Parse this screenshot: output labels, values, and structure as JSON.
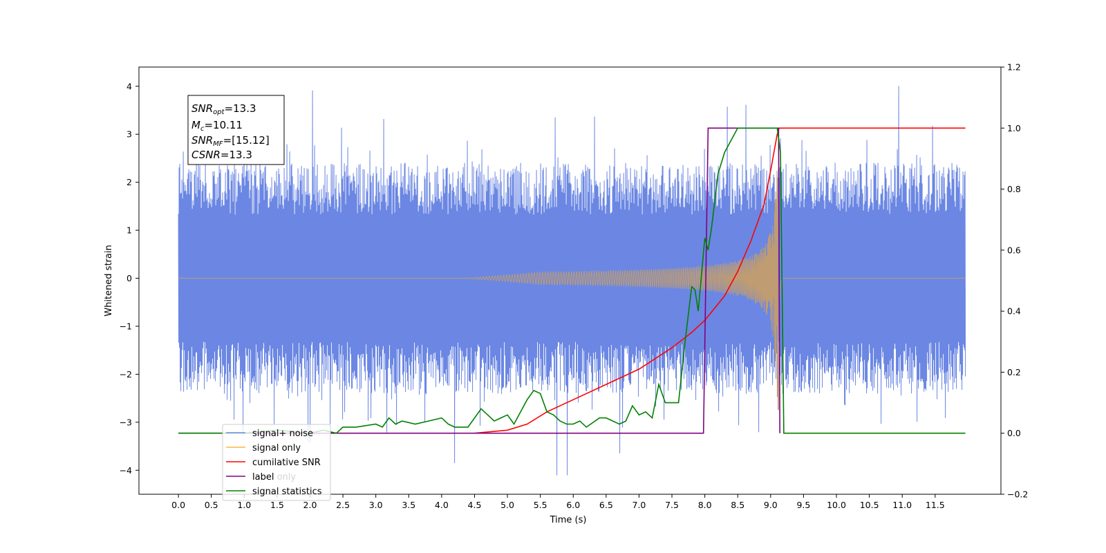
{
  "chart_data": {
    "type": "line",
    "xlabel": "Time (s)",
    "ylabel": "Whitened strain",
    "x_ticks": [
      "0.0",
      "0.5",
      "1.0",
      "1.5",
      "2.0",
      "2.5",
      "3.0",
      "3.5",
      "4.0",
      "4.5",
      "5.0",
      "5.5",
      "6.0",
      "6.5",
      "7.0",
      "7.5",
      "8.0",
      "8.5",
      "9.0",
      "9.5",
      "10.0",
      "10.5",
      "11.0",
      "11.5"
    ],
    "y_left_ticks": [
      "4",
      "3",
      "2",
      "1",
      "0",
      "−1",
      "−2",
      "−3",
      "−4"
    ],
    "y_right_ticks": [
      "1.2",
      "1.0",
      "0.8",
      "0.6",
      "0.4",
      "0.2",
      "0.0",
      "−0.2"
    ],
    "xlim": [
      -0.6,
      12.5
    ],
    "ylim_left": [
      -4.5,
      4.4
    ],
    "ylim_right": [
      -0.2,
      1.2
    ],
    "info_box": {
      "line1_sym": "SNR",
      "line1_sub": "opt",
      "line1_val": "=13.3",
      "line2_sym": "M",
      "line2_sub": "c",
      "line2_val": "=10.11",
      "line3_sym": "SNR",
      "line3_sub": "MF",
      "line3_val": "=[15.12]",
      "line4_sym": "CSNR",
      "line4_val": "=13.3"
    },
    "legend": {
      "placement": "lower-left",
      "entries": [
        "signal+ noise",
        "signal only",
        "cumilative SNR",
        "label",
        "signal statistics"
      ],
      "hidden_entry": "label only"
    },
    "colors": {
      "noise": "#6b87e3",
      "signal": "#ffb347",
      "cumulative_snr": "#ff0000",
      "label": "#800080",
      "statistics": "#008000",
      "overlap": "#bf9c72"
    },
    "series": [
      {
        "name": "signal+ noise",
        "axis": "left",
        "x_range": [
          0.0,
          11.96
        ],
        "envelope_upper": 2.4,
        "envelope_lower": -2.4,
        "peak_max": 4.0,
        "peak_min": -4.1
      },
      {
        "name": "signal only",
        "axis": "left",
        "chirp_start": 4.3,
        "merger_time": 9.12,
        "peak_amplitude": 3.0
      },
      {
        "name": "cumilative SNR",
        "axis": "right",
        "x": [
          4.5,
          5.0,
          5.3,
          5.6,
          6.0,
          6.5,
          7.0,
          7.5,
          7.8,
          8.0,
          8.3,
          8.5,
          8.7,
          8.9,
          9.0,
          9.05,
          9.1,
          9.13,
          11.96
        ],
        "y": [
          0.0,
          0.01,
          0.03,
          0.07,
          0.11,
          0.16,
          0.21,
          0.28,
          0.33,
          0.37,
          0.45,
          0.53,
          0.63,
          0.75,
          0.86,
          0.92,
          0.98,
          1.0,
          1.0
        ]
      },
      {
        "name": "label",
        "axis": "right",
        "x": [
          0.0,
          7.98,
          8.05,
          9.12,
          9.14
        ],
        "y": [
          0.0,
          0.0,
          1.0,
          1.0,
          0.0
        ],
        "end": 9.14
      },
      {
        "name": "signal statistics",
        "axis": "right",
        "x": [
          0.0,
          0.5,
          1.0,
          1.5,
          2.0,
          2.2,
          2.4,
          2.5,
          2.7,
          3.0,
          3.1,
          3.2,
          3.3,
          3.4,
          3.6,
          3.8,
          4.0,
          4.1,
          4.2,
          4.4,
          4.6,
          4.7,
          4.8,
          4.9,
          5.0,
          5.1,
          5.2,
          5.3,
          5.4,
          5.5,
          5.6,
          5.7,
          5.8,
          5.9,
          6.0,
          6.1,
          6.2,
          6.4,
          6.5,
          6.7,
          6.8,
          6.9,
          7.0,
          7.1,
          7.2,
          7.3,
          7.4,
          7.5,
          7.6,
          7.7,
          7.8,
          7.85,
          7.9,
          8.0,
          8.05,
          8.1,
          8.2,
          8.3,
          8.4,
          8.5,
          8.6,
          8.7,
          8.8,
          8.9,
          9.0,
          9.1,
          9.15,
          9.2,
          9.5,
          10.0,
          11.0,
          11.96
        ],
        "y": [
          0.0,
          0.0,
          0.0,
          0.01,
          0.0,
          0.01,
          0.0,
          0.02,
          0.02,
          0.03,
          0.02,
          0.05,
          0.03,
          0.04,
          0.03,
          0.04,
          0.05,
          0.03,
          0.02,
          0.02,
          0.08,
          0.06,
          0.04,
          0.05,
          0.06,
          0.03,
          0.07,
          0.11,
          0.14,
          0.13,
          0.07,
          0.06,
          0.04,
          0.03,
          0.03,
          0.04,
          0.02,
          0.05,
          0.05,
          0.03,
          0.04,
          0.09,
          0.06,
          0.07,
          0.05,
          0.16,
          0.1,
          0.1,
          0.1,
          0.3,
          0.48,
          0.47,
          0.4,
          0.64,
          0.6,
          0.67,
          0.85,
          0.92,
          0.96,
          1.0,
          1.0,
          1.0,
          1.0,
          1.0,
          1.0,
          1.0,
          0.92,
          0.0,
          0.0,
          0.0,
          0.0,
          0.0
        ]
      }
    ]
  }
}
